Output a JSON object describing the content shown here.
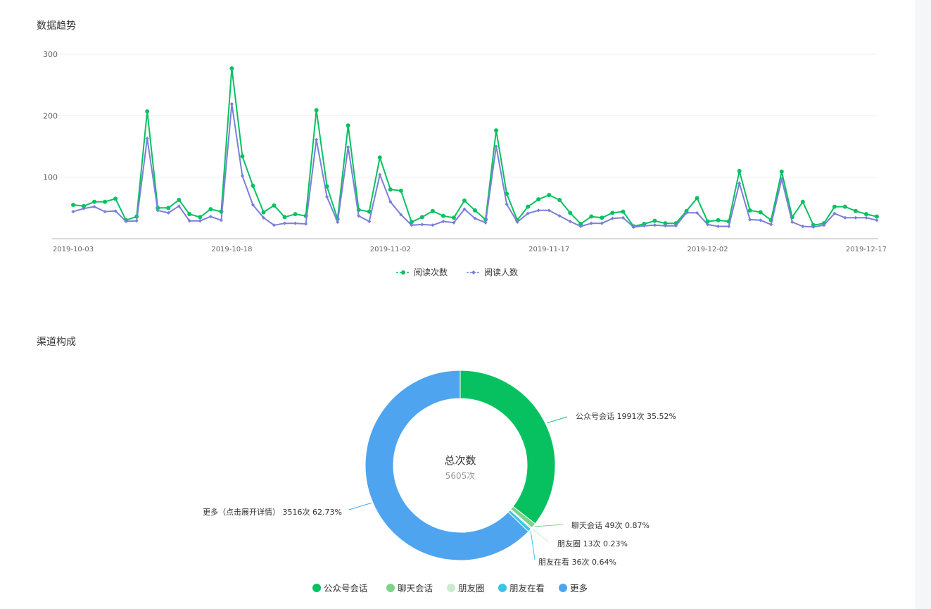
{
  "sections": {
    "trend_title": "数据趋势",
    "channel_title": "渠道构成"
  },
  "colors": {
    "reads": "#07c160",
    "readers": "#7b7fd9",
    "gongzhonghao": "#07c160",
    "liaotian": "#7ed38a",
    "pengyouquan": "#c7ecd0",
    "pengyouzaikan": "#3cc4e6",
    "gengduo": "#4ea4ef"
  },
  "chart_data": [
    {
      "type": "line",
      "title": "",
      "xlabel": "",
      "ylabel": "",
      "ylim": [
        0,
        300
      ],
      "yticks": [
        100,
        200,
        300
      ],
      "x_ticks": [
        "2019-10-03",
        "2019-10-18",
        "2019-11-02",
        "2019-11-17",
        "2019-12-02",
        "2019-12-17"
      ],
      "x": [
        "2019-10-03",
        "2019-10-04",
        "2019-10-05",
        "2019-10-06",
        "2019-10-07",
        "2019-10-08",
        "2019-10-09",
        "2019-10-10",
        "2019-10-11",
        "2019-10-12",
        "2019-10-13",
        "2019-10-14",
        "2019-10-15",
        "2019-10-16",
        "2019-10-17",
        "2019-10-18",
        "2019-10-19",
        "2019-10-20",
        "2019-10-21",
        "2019-10-22",
        "2019-10-23",
        "2019-10-24",
        "2019-10-25",
        "2019-10-26",
        "2019-10-27",
        "2019-10-28",
        "2019-10-29",
        "2019-10-30",
        "2019-10-31",
        "2019-11-01",
        "2019-11-02",
        "2019-11-03",
        "2019-11-04",
        "2019-11-05",
        "2019-11-06",
        "2019-11-07",
        "2019-11-08",
        "2019-11-09",
        "2019-11-10",
        "2019-11-11",
        "2019-11-12",
        "2019-11-13",
        "2019-11-14",
        "2019-11-15",
        "2019-11-16",
        "2019-11-17",
        "2019-11-18",
        "2019-11-19",
        "2019-11-20",
        "2019-11-21",
        "2019-11-22",
        "2019-11-23",
        "2019-11-24",
        "2019-11-25",
        "2019-11-26",
        "2019-11-27",
        "2019-11-28",
        "2019-11-29",
        "2019-11-30",
        "2019-12-01",
        "2019-12-02",
        "2019-12-03",
        "2019-12-04",
        "2019-12-05",
        "2019-12-06",
        "2019-12-07",
        "2019-12-08",
        "2019-12-09",
        "2019-12-10",
        "2019-12-11",
        "2019-12-12",
        "2019-12-13",
        "2019-12-14",
        "2019-12-15",
        "2019-12-16",
        "2019-12-17",
        "2019-12-18"
      ],
      "series": [
        {
          "name": "阅读次数",
          "values": [
            55,
            53,
            60,
            60,
            65,
            30,
            36,
            207,
            50,
            50,
            63,
            40,
            35,
            48,
            44,
            277,
            134,
            86,
            43,
            54,
            35,
            40,
            37,
            209,
            85,
            32,
            184,
            47,
            44,
            132,
            80,
            78,
            27,
            35,
            45,
            37,
            34,
            62,
            46,
            31,
            176,
            73,
            30,
            52,
            64,
            71,
            63,
            42,
            24,
            36,
            34,
            42,
            44,
            20,
            24,
            29,
            25,
            25,
            45,
            66,
            28,
            30,
            28,
            110,
            46,
            43,
            30,
            109,
            35,
            60,
            22,
            25,
            52,
            52,
            45,
            40,
            36
          ],
          "color": "#07c160"
        },
        {
          "name": "阅读人数",
          "values": [
            44,
            49,
            52,
            44,
            45,
            28,
            29,
            163,
            46,
            42,
            53,
            29,
            29,
            36,
            30,
            219,
            102,
            55,
            34,
            22,
            25,
            25,
            24,
            161,
            68,
            27,
            149,
            37,
            28,
            104,
            60,
            39,
            22,
            23,
            22,
            28,
            26,
            48,
            33,
            26,
            150,
            56,
            27,
            41,
            46,
            46,
            37,
            28,
            20,
            25,
            25,
            33,
            34,
            19,
            21,
            22,
            21,
            21,
            42,
            42,
            23,
            20,
            20,
            90,
            31,
            30,
            23,
            97,
            27,
            20,
            19,
            22,
            41,
            34,
            34,
            34,
            30
          ],
          "color": "#7b7fd9"
        }
      ]
    },
    {
      "type": "pie",
      "center_title": "总次数",
      "center_value": "5605次",
      "slices": [
        {
          "name": "公众号会话",
          "value": 1991,
          "label": "公众号会话 1991次 35.52%",
          "color": "#07c160"
        },
        {
          "name": "聊天会话",
          "value": 49,
          "label": "聊天会话 49次 0.87%",
          "color": "#7ed38a"
        },
        {
          "name": "朋友圈",
          "value": 13,
          "label": "朋友圈 13次 0.23%",
          "color": "#c7ecd0"
        },
        {
          "name": "朋友在看",
          "value": 36,
          "label": "朋友在看 36次 0.64%",
          "color": "#3cc4e6"
        },
        {
          "name": "更多",
          "value": 3516,
          "label": "更多（点击展开详情） 3516次 62.73%",
          "color": "#4ea4ef"
        }
      ]
    }
  ]
}
